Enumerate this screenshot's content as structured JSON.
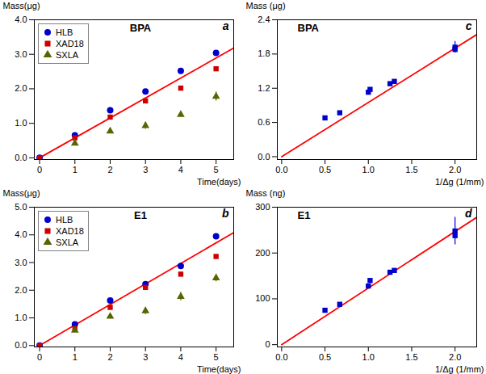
{
  "chart_data": [
    {
      "type": "scatter",
      "title": "BPA",
      "annotations": [
        "a"
      ],
      "xlabel": "Time(days)",
      "ylabel": "Mass(μg)",
      "xlim": [
        -0.15,
        5.5
      ],
      "ylim": [
        -0.05,
        4.0
      ],
      "xticks": [
        0,
        1,
        2,
        3,
        4,
        5
      ],
      "yticks": [
        {
          "value": 0.0,
          "label": "0.0"
        },
        {
          "value": 1.0,
          "label": "1.0"
        },
        {
          "value": 2.0,
          "label": "2.0"
        },
        {
          "value": 3.0,
          "label": "3.0"
        },
        {
          "value": 4.0,
          "label": "4.0"
        }
      ],
      "legend": "upper left",
      "series": [
        {
          "type": "line",
          "color": "#ff0000",
          "line_style": "solid",
          "x": [
            0,
            5.5
          ],
          "values": [
            0.0,
            3.18
          ]
        },
        {
          "name": "HLB",
          "type": "scatter",
          "marker": "circle",
          "color": "#0000cc",
          "x": [
            0,
            1,
            2,
            3,
            4,
            5
          ],
          "values": [
            0.0,
            0.65,
            1.38,
            1.92,
            2.52,
            3.04
          ],
          "yerr": [
            0.0,
            0.03,
            0.06,
            0.04,
            0.05,
            0.05
          ]
        },
        {
          "name": "XAD18",
          "type": "scatter",
          "marker": "square",
          "color": "#cc0000",
          "x": [
            0,
            1,
            2,
            3,
            4,
            5
          ],
          "values": [
            0.0,
            0.58,
            1.18,
            1.65,
            2.02,
            2.58
          ],
          "yerr": [
            0.0,
            0.03,
            0.04,
            0.03,
            0.04,
            0.04
          ]
        },
        {
          "name": "SXLA",
          "type": "scatter",
          "marker": "triangle",
          "color": "#556600",
          "x": [
            1,
            2,
            3,
            4,
            5
          ],
          "values": [
            0.42,
            0.77,
            0.93,
            1.25,
            1.78
          ],
          "yerr": [
            0.03,
            0.03,
            0.1,
            0.05,
            0.13
          ]
        }
      ]
    },
    {
      "type": "scatter",
      "title": "BPA",
      "annotations": [
        "c"
      ],
      "xlabel": "1/Δg (1/mm)",
      "ylabel": "Mass (μg)",
      "xlim": [
        -0.05,
        2.25
      ],
      "ylim": [
        -0.05,
        2.4
      ],
      "xticks": [
        {
          "value": 0,
          "label": "0.0"
        },
        0.5,
        {
          "value": 1.0,
          "label": "1.0"
        },
        1.5,
        {
          "value": 2.0,
          "label": "2.0"
        }
      ],
      "yticks": [
        {
          "value": 0.0,
          "label": "0.0"
        },
        0.6,
        1.2,
        1.8,
        2.4
      ],
      "series": [
        {
          "type": "line",
          "color": "#ff0000",
          "line_style": "solid",
          "x": [
            0,
            2.25
          ],
          "values": [
            0.0,
            2.14
          ]
        },
        {
          "type": "scatter",
          "marker": "square",
          "color": "#0000cc",
          "x": [
            0.5,
            0.67,
            1.0,
            1.02,
            1.25,
            1.3,
            2.0,
            2.0
          ],
          "values": [
            0.68,
            0.77,
            1.13,
            1.18,
            1.28,
            1.32,
            1.88,
            1.92
          ],
          "yerr": [
            0.0,
            0.0,
            0.0,
            0.0,
            0.0,
            0.0,
            0.0,
            0.1
          ]
        }
      ]
    },
    {
      "type": "scatter",
      "title": "E1",
      "annotations": [
        "b"
      ],
      "xlabel": "Time(days)",
      "ylabel": "Mass(μg)",
      "xlim": [
        -0.15,
        5.5
      ],
      "ylim": [
        -0.05,
        5.0
      ],
      "xticks": [
        0,
        1,
        2,
        3,
        4,
        5
      ],
      "yticks": [
        {
          "value": 0.0,
          "label": "0.0"
        },
        {
          "value": 1.0,
          "label": "1.0"
        },
        {
          "value": 2.0,
          "label": "2.0"
        },
        {
          "value": 3.0,
          "label": "3.0"
        },
        {
          "value": 4.0,
          "label": "4.0"
        },
        {
          "value": 5.0,
          "label": "5.0"
        }
      ],
      "legend": "upper left",
      "series": [
        {
          "type": "line",
          "color": "#ff0000",
          "line_style": "solid",
          "x": [
            0,
            5.5
          ],
          "values": [
            0.0,
            4.08
          ]
        },
        {
          "name": "HLB",
          "type": "scatter",
          "marker": "circle",
          "color": "#0000cc",
          "x": [
            0,
            1,
            2,
            3,
            4,
            5
          ],
          "values": [
            0.0,
            0.77,
            1.63,
            2.22,
            2.88,
            3.95
          ],
          "yerr": [
            0.0,
            0.04,
            0.07,
            0.05,
            0.06,
            0.07
          ]
        },
        {
          "name": "XAD18",
          "type": "scatter",
          "marker": "square",
          "color": "#cc0000",
          "x": [
            0,
            1,
            2,
            3,
            4,
            5
          ],
          "values": [
            0.0,
            0.62,
            1.38,
            2.1,
            2.58,
            3.22
          ],
          "yerr": [
            0.0,
            0.03,
            0.05,
            0.04,
            0.05,
            0.06
          ]
        },
        {
          "name": "SXLA",
          "type": "scatter",
          "marker": "triangle",
          "color": "#556600",
          "x": [
            1,
            2,
            3,
            4,
            5
          ],
          "values": [
            0.55,
            1.05,
            1.25,
            1.77,
            2.44
          ],
          "yerr": [
            0.03,
            0.04,
            0.13,
            0.15,
            0.13
          ]
        }
      ]
    },
    {
      "type": "scatter",
      "title": "E1",
      "annotations": [
        "d"
      ],
      "xlabel": "1/Δg (1/mm)",
      "ylabel": "Mass (ng)",
      "xlim": [
        -0.05,
        2.25
      ],
      "ylim": [
        -5,
        300
      ],
      "xticks": [
        {
          "value": 0,
          "label": "0.0"
        },
        0.5,
        {
          "value": 1.0,
          "label": "1.0"
        },
        1.5,
        {
          "value": 2.0,
          "label": "2.0"
        }
      ],
      "yticks": [
        0,
        100,
        200,
        300
      ],
      "series": [
        {
          "type": "line",
          "color": "#ff0000",
          "line_style": "solid",
          "x": [
            0,
            2.25
          ],
          "values": [
            0,
            278
          ]
        },
        {
          "type": "scatter",
          "marker": "square",
          "color": "#0000cc",
          "x": [
            0.5,
            0.67,
            1.0,
            1.02,
            1.25,
            1.3,
            2.0,
            2.0
          ],
          "values": [
            75,
            88,
            128,
            140,
            158,
            162,
            238,
            248
          ],
          "yerr": [
            0,
            0,
            0,
            0,
            0,
            0,
            0,
            30
          ]
        }
      ]
    }
  ]
}
